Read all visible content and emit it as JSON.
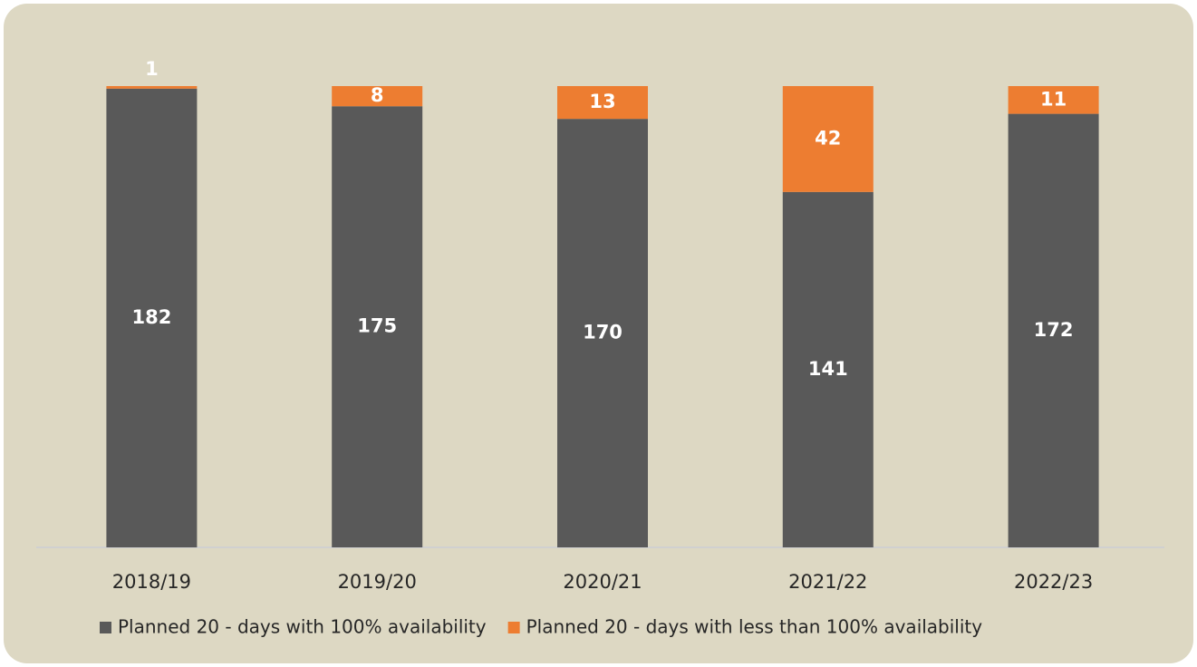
{
  "chart_data": {
    "type": "stacked-bar",
    "categories": [
      "2018/19",
      "2019/20",
      "2020/21",
      "2021/22",
      "2022/23"
    ],
    "series": [
      {
        "name": "Planned 20 - days with 100% availability",
        "color": "#595959",
        "values": [
          182,
          175,
          170,
          141,
          172
        ]
      },
      {
        "name": "Planned 20 - days with less than 100% availability",
        "color": "#ed7d31",
        "values": [
          1,
          8,
          13,
          42,
          11
        ]
      }
    ],
    "legend": "bottom"
  }
}
